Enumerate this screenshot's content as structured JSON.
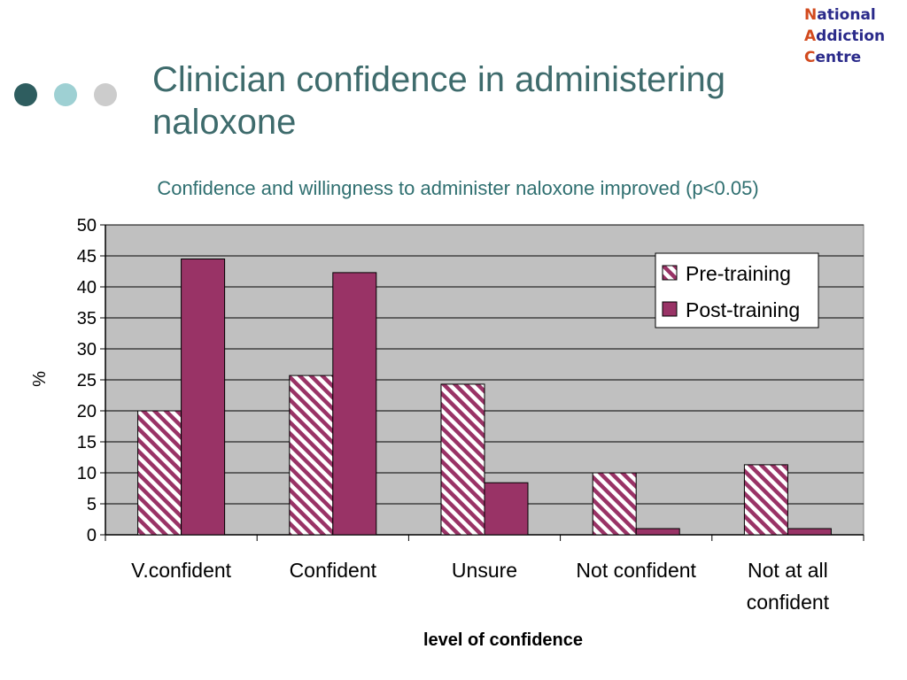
{
  "slide": {
    "title": "Clinician confidence in administering naloxone",
    "subtitle": "Confidence and willingness to administer naloxone improved (p<0.05)"
  },
  "logo": {
    "lines": [
      {
        "first": "N",
        "rest": "ational"
      },
      {
        "first": "A",
        "rest": "ddiction"
      },
      {
        "first": "C",
        "rest": "entre"
      }
    ]
  },
  "colors": {
    "title": "#3e6b6c",
    "dot1": "#2e5d5f",
    "dot2": "#9ed0d3",
    "dot3": "#cccccc",
    "plot_bg": "#c0c0c0",
    "post_training": "#993366",
    "pre_training_stripe": "#993366",
    "logo_accent": "#d24a1e",
    "logo_text": "#2a2a8a"
  },
  "chart_data": {
    "type": "bar",
    "categories": [
      [
        "V.confident"
      ],
      [
        "Confident"
      ],
      [
        "Unsure"
      ],
      [
        "Not confident"
      ],
      [
        "Not at all",
        "confident"
      ]
    ],
    "series": [
      {
        "name": "Pre-training",
        "values": [
          20,
          25.7,
          24.3,
          10,
          11.3
        ],
        "fill": "hatched"
      },
      {
        "name": "Post-training",
        "values": [
          44.5,
          42.3,
          8.4,
          1,
          1
        ],
        "fill": "solid"
      }
    ],
    "ylim": [
      0,
      50
    ],
    "yticks": [
      0,
      5,
      10,
      15,
      20,
      25,
      30,
      35,
      40,
      45,
      50
    ],
    "xlabel": "level of confidence",
    "ylabel": "%",
    "grid": true,
    "legend_position": "top-right"
  }
}
